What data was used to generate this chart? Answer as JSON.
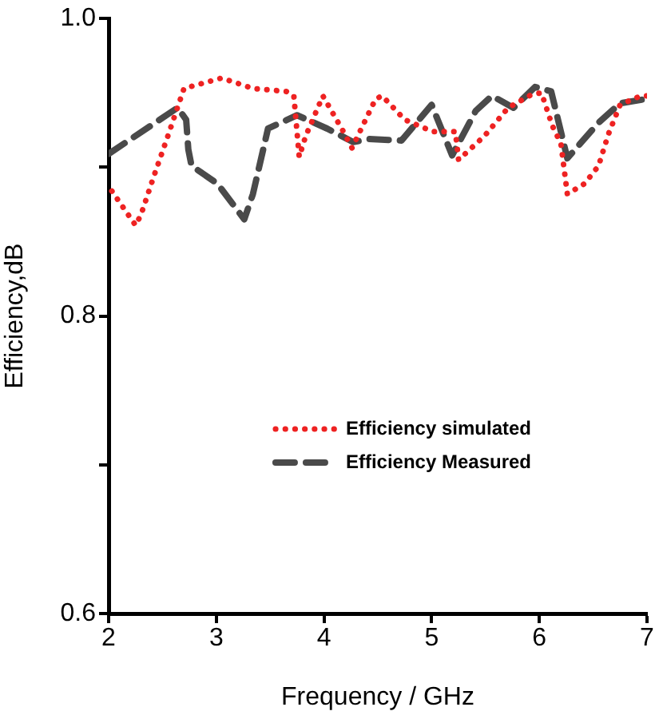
{
  "chart_data": {
    "type": "line",
    "xlabel": "Frequency / GHz",
    "ylabel": "Efficiency,dB",
    "xlim": [
      2,
      7
    ],
    "xticks": [
      2,
      3,
      4,
      5,
      6,
      7
    ],
    "ylim": [
      0.6,
      1.0
    ],
    "yticks": [
      0.6,
      {
        "value": 0.7,
        "label": null
      },
      0.8,
      {
        "value": 0.9,
        "label": null
      },
      {
        "value": 1.0,
        "label": "1.0"
      }
    ],
    "grid": false,
    "legend": "right",
    "marker": "none",
    "series": [
      {
        "name": "Efficiency simulated",
        "color": "#ee2222",
        "line_style": "dotted",
        "x": [
          2.03,
          2.25,
          2.3,
          2.42,
          2.55,
          2.7,
          3.05,
          3.34,
          3.65,
          3.72,
          3.77,
          3.83,
          3.99,
          4.18,
          4.26,
          4.48,
          4.54,
          4.75,
          5.01,
          5.22,
          5.25,
          5.49,
          5.71,
          5.93,
          6.02,
          6.12,
          6.2,
          6.26,
          6.42,
          6.55,
          6.64,
          6.75,
          6.94,
          7.0
        ],
        "values": [
          0.884,
          0.861,
          0.868,
          0.894,
          0.921,
          0.953,
          0.96,
          0.953,
          0.951,
          0.948,
          0.907,
          0.921,
          0.948,
          0.924,
          0.913,
          0.946,
          0.948,
          0.932,
          0.924,
          0.924,
          0.905,
          0.921,
          0.94,
          0.949,
          0.95,
          0.928,
          0.916,
          0.882,
          0.889,
          0.901,
          0.922,
          0.942,
          0.948,
          0.948
        ]
      },
      {
        "name": "Efficiency Measured",
        "color": "#4a4a4a",
        "line_style": "dashed",
        "x": [
          2.0,
          2.64,
          2.72,
          2.74,
          2.77,
          3.01,
          3.26,
          3.34,
          3.48,
          3.75,
          4.03,
          4.27,
          4.42,
          4.72,
          5.0,
          5.19,
          5.41,
          5.56,
          5.76,
          5.96,
          6.11,
          6.26,
          6.55,
          6.75,
          7.0
        ],
        "values": [
          0.909,
          0.94,
          0.932,
          0.912,
          0.901,
          0.889,
          0.865,
          0.882,
          0.926,
          0.935,
          0.926,
          0.917,
          0.919,
          0.918,
          0.942,
          0.908,
          0.938,
          0.948,
          0.94,
          0.954,
          0.951,
          0.906,
          0.93,
          0.943,
          0.946
        ]
      }
    ]
  }
}
